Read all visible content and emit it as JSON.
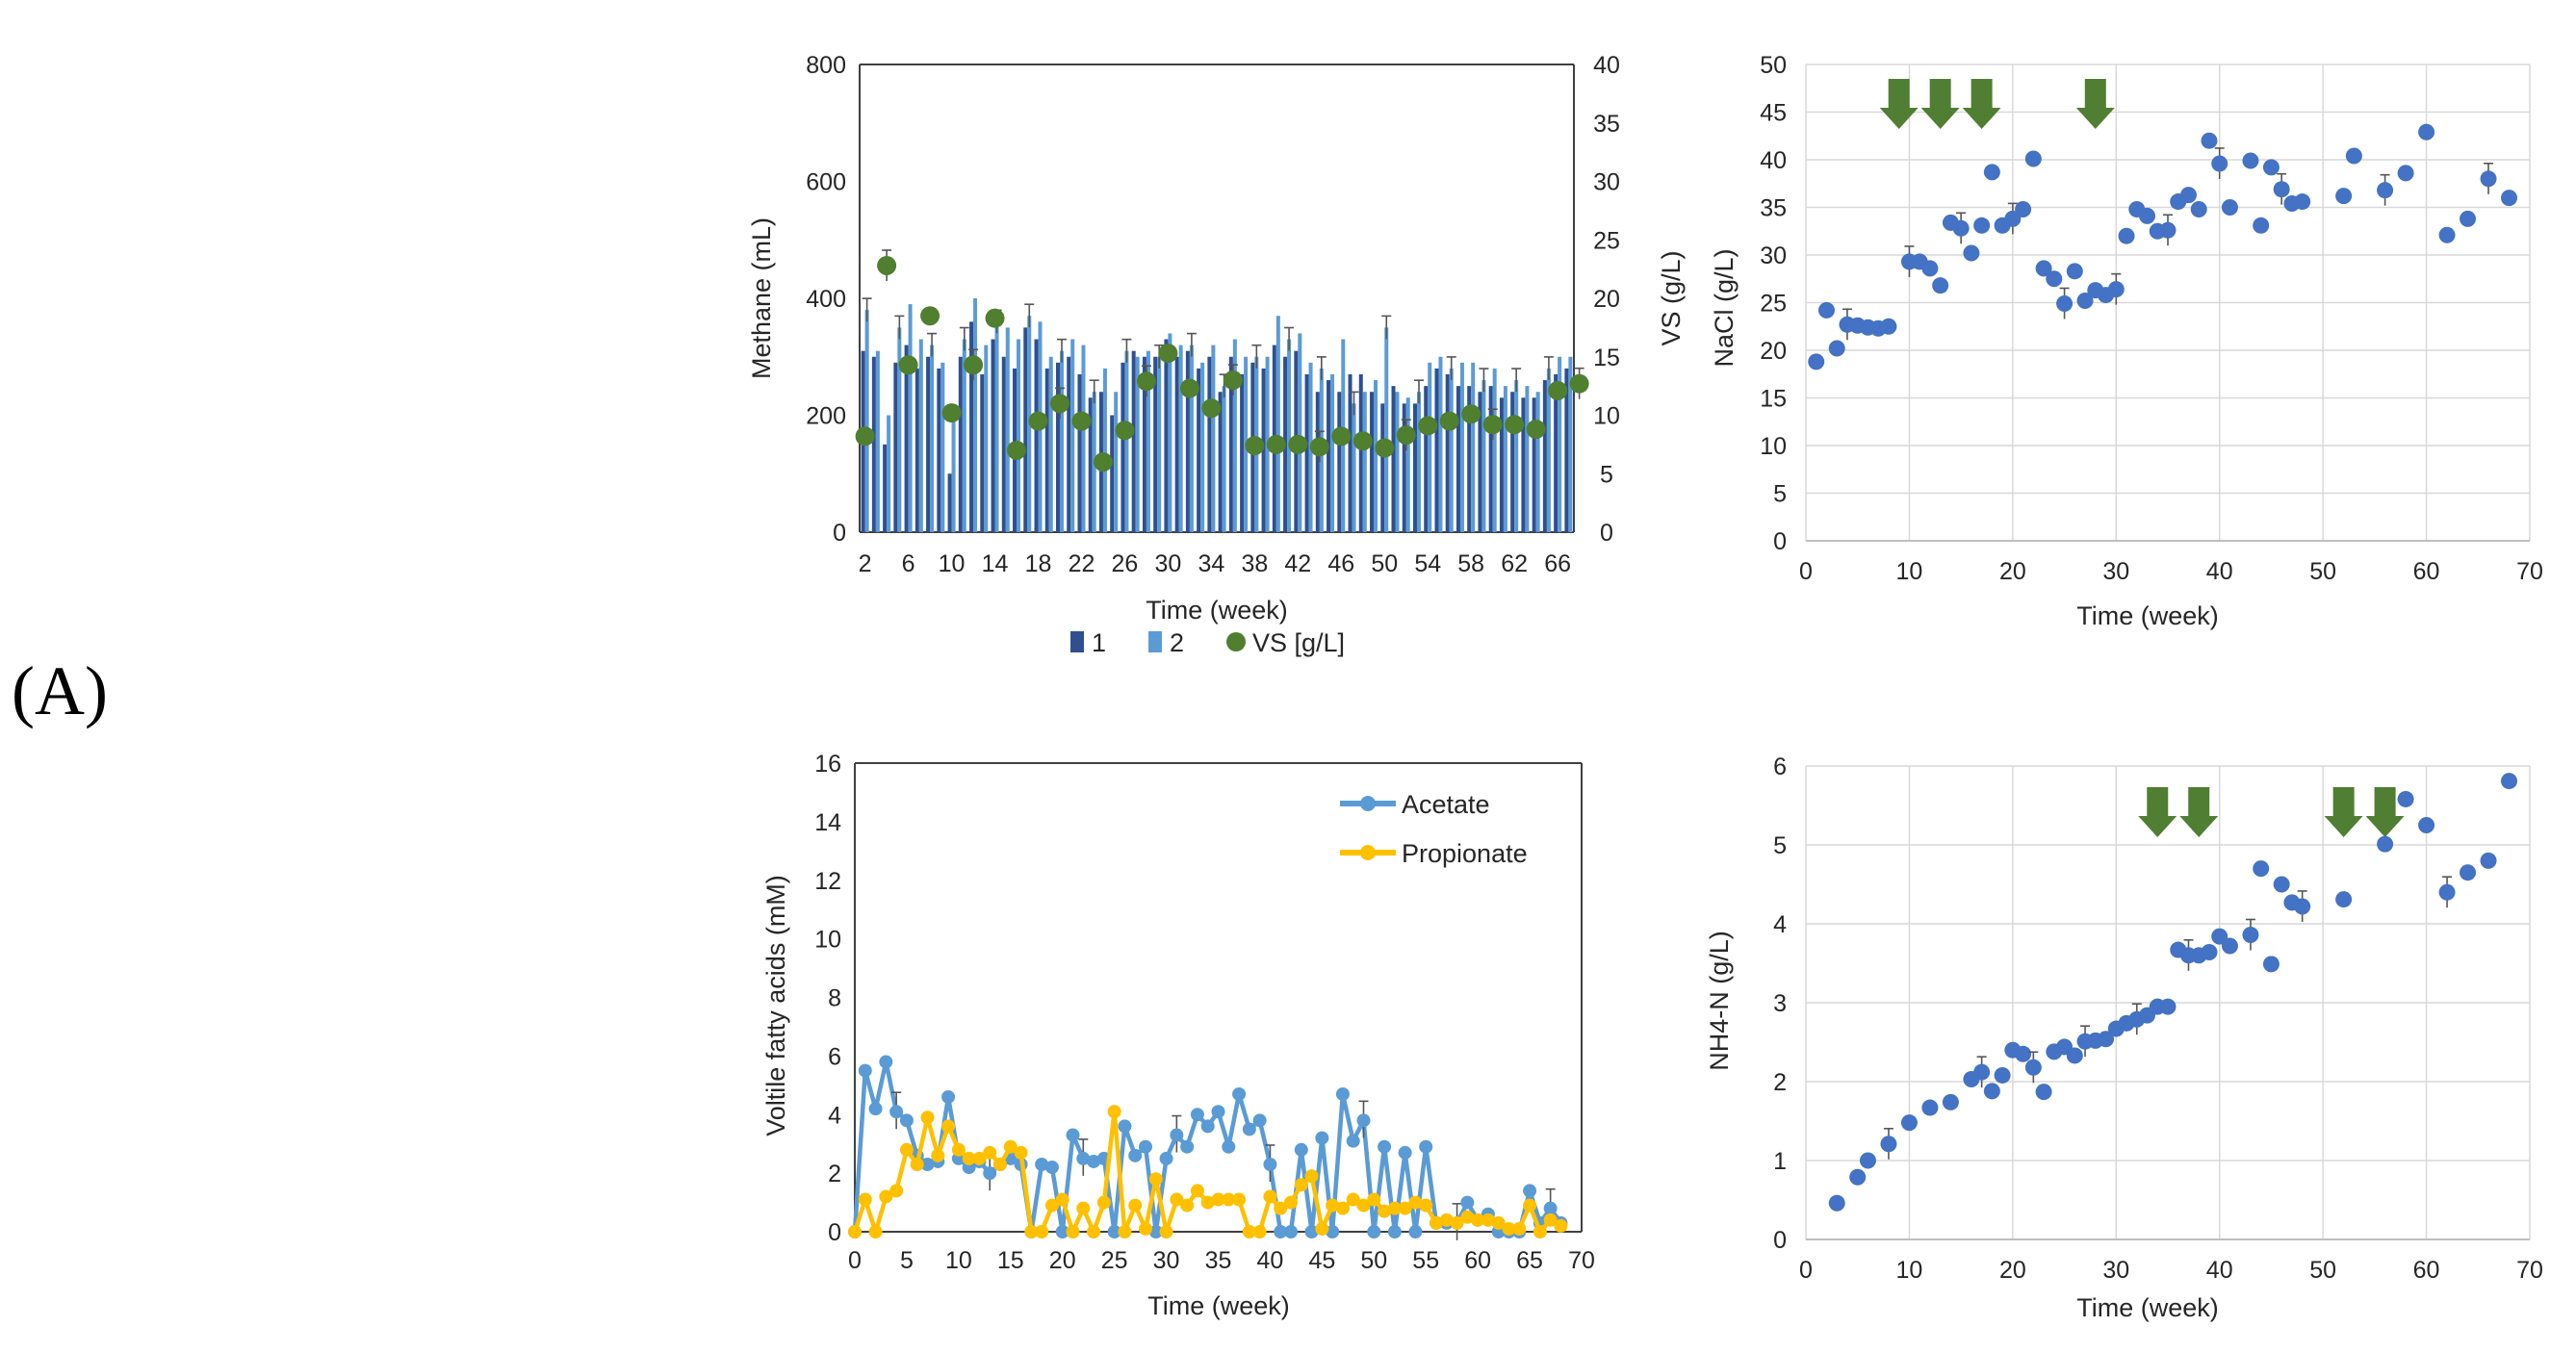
{
  "panel_label": "(A)",
  "colors": {
    "bar1": "#2f4f8f",
    "bar2": "#5b9bd5",
    "vs": "#4f7f2f",
    "nacl": "#4472c4",
    "acetate": "#5b9bd5",
    "propionate": "#ffc000",
    "arrow": "#507e32",
    "grid": "#d9d9d9",
    "axis": "#404040",
    "error": "#555555"
  },
  "chart_data": [
    {
      "type": "bar",
      "id": "methane",
      "xlabel": "Time (week)",
      "ylabel": "Methane (mL)",
      "y2label": "VS (g/L)",
      "ylim": [
        0,
        800
      ],
      "yticks": [
        0,
        200,
        400,
        600,
        800
      ],
      "y2lim": [
        0,
        40
      ],
      "y2ticks": [
        0,
        5,
        10,
        15,
        20,
        25,
        30,
        35,
        40
      ],
      "xtick_labels": [
        "2",
        "6",
        "10",
        "14",
        "18",
        "22",
        "26",
        "30",
        "34",
        "38",
        "42",
        "46",
        "50",
        "54",
        "58",
        "62",
        "66"
      ],
      "categories": [
        2,
        3,
        4,
        5,
        6,
        7,
        8,
        9,
        10,
        11,
        12,
        13,
        14,
        15,
        16,
        17,
        18,
        19,
        20,
        21,
        22,
        23,
        24,
        25,
        26,
        27,
        28,
        29,
        30,
        31,
        32,
        33,
        34,
        35,
        36,
        37,
        38,
        39,
        40,
        41,
        42,
        43,
        44,
        45,
        46,
        47,
        48,
        49,
        50,
        51,
        52,
        53,
        54,
        55,
        56,
        57,
        58,
        59,
        60,
        61,
        62,
        63,
        64,
        65,
        66,
        67
      ],
      "legend_position": "bottom",
      "legend": [
        "1",
        "2",
        "VS [g/L]"
      ],
      "series": [
        {
          "name": "1",
          "values": [
            310,
            300,
            150,
            290,
            320,
            280,
            300,
            280,
            100,
            300,
            360,
            270,
            330,
            300,
            280,
            350,
            330,
            280,
            290,
            300,
            270,
            230,
            240,
            200,
            290,
            310,
            300,
            300,
            330,
            300,
            310,
            280,
            300,
            240,
            300,
            270,
            290,
            280,
            320,
            300,
            310,
            270,
            240,
            260,
            240,
            270,
            270,
            240,
            220,
            250,
            220,
            220,
            250,
            280,
            270,
            250,
            250,
            240,
            250,
            230,
            240,
            230,
            230,
            260,
            270,
            280
          ]
        },
        {
          "name": "2",
          "values": [
            380,
            310,
            200,
            350,
            390,
            330,
            320,
            290,
            190,
            330,
            400,
            320,
            360,
            350,
            330,
            370,
            360,
            300,
            310,
            330,
            320,
            240,
            280,
            240,
            310,
            300,
            310,
            300,
            340,
            320,
            320,
            290,
            320,
            250,
            330,
            300,
            300,
            300,
            370,
            330,
            340,
            290,
            280,
            270,
            330,
            220,
            240,
            260,
            350,
            240,
            230,
            240,
            290,
            300,
            280,
            290,
            290,
            260,
            280,
            250,
            260,
            250,
            240,
            280,
            300,
            300
          ]
        },
        {
          "name": "VS [g/L]",
          "x": [
            2,
            4,
            6,
            8,
            10,
            12,
            14,
            16,
            18,
            20,
            22,
            24,
            26,
            28,
            30,
            32,
            34,
            36,
            38,
            40,
            42,
            44,
            46,
            48,
            50,
            52,
            54,
            56,
            58,
            60,
            62,
            64,
            66,
            68
          ],
          "values": [
            8.2,
            22.8,
            14.3,
            18.5,
            10.2,
            14.3,
            18.3,
            7,
            9.5,
            11,
            9.5,
            6,
            8.7,
            12.9,
            15.3,
            12.3,
            10.6,
            13,
            7.4,
            7.5,
            7.5,
            7.3,
            8.2,
            7.8,
            7.2,
            8.3,
            9.1,
            9.5,
            10.1,
            9.2,
            9.2,
            8.8,
            12.1,
            12.7
          ]
        }
      ]
    },
    {
      "type": "scatter",
      "id": "nacl",
      "xlabel": "Time (week)",
      "ylabel": "NaCl (g/L)",
      "xlim": [
        0,
        70
      ],
      "xticks": [
        0,
        10,
        20,
        30,
        40,
        50,
        60,
        70
      ],
      "ylim": [
        0,
        50
      ],
      "yticks": [
        0,
        5,
        10,
        15,
        20,
        25,
        30,
        35,
        40,
        45,
        50
      ],
      "grid": true,
      "arrows_at_week": [
        9,
        13,
        17,
        28
      ],
      "series": [
        {
          "name": "NaCl",
          "x": [
            1,
            2,
            3,
            4,
            5,
            6,
            7,
            8,
            10,
            11,
            12,
            13,
            14,
            15,
            16,
            17,
            18,
            19,
            20,
            21,
            22,
            23,
            24,
            25,
            26,
            27,
            28,
            29,
            30,
            31,
            32,
            33,
            34,
            35,
            36,
            37,
            38,
            39,
            40,
            41,
            43,
            44,
            45,
            46,
            47,
            48,
            52,
            53,
            56,
            58,
            60,
            62,
            64,
            66,
            68
          ],
          "y": [
            18.8,
            24.2,
            20.2,
            22.7,
            22.6,
            22.4,
            22.3,
            22.5,
            29.3,
            29.3,
            28.6,
            26.8,
            33.4,
            32.8,
            30.2,
            33.1,
            38.7,
            33.1,
            33.8,
            34.8,
            40.1,
            28.6,
            27.5,
            24.9,
            28.3,
            25.2,
            26.3,
            25.8,
            26.4,
            32.0,
            34.8,
            34.1,
            32.5,
            32.6,
            35.6,
            36.3,
            34.8,
            42.0,
            39.6,
            35.0,
            39.9,
            33.1,
            39.2,
            36.9,
            35.4,
            35.6,
            36.2,
            40.4,
            36.8,
            38.6,
            42.9,
            32.1,
            33.8,
            38.0,
            36.0
          ]
        }
      ]
    },
    {
      "type": "line",
      "id": "vfa",
      "xlabel": "Time (week)",
      "ylabel": "Voltile fatty acids (mM)",
      "xlim": [
        0,
        70
      ],
      "xticks": [
        0,
        5,
        10,
        15,
        20,
        25,
        30,
        35,
        40,
        45,
        50,
        55,
        60,
        65,
        70
      ],
      "ylim": [
        0,
        16
      ],
      "yticks": [
        0,
        2,
        4,
        6,
        8,
        10,
        12,
        14,
        16
      ],
      "legend_position": "top-right",
      "series": [
        {
          "name": "Acetate",
          "x": [
            0,
            1,
            2,
            3,
            4,
            5,
            6,
            7,
            8,
            9,
            10,
            11,
            12,
            13,
            14,
            15,
            16,
            17,
            18,
            19,
            20,
            21,
            22,
            23,
            24,
            25,
            26,
            27,
            28,
            29,
            30,
            31,
            32,
            33,
            34,
            35,
            36,
            37,
            38,
            39,
            40,
            41,
            42,
            43,
            44,
            45,
            46,
            47,
            48,
            49,
            50,
            51,
            52,
            53,
            54,
            55,
            56,
            57,
            58,
            59,
            60,
            61,
            62,
            63,
            64,
            65,
            66,
            67,
            68
          ],
          "y": [
            0,
            5.5,
            4.2,
            5.8,
            4.1,
            3.8,
            2.6,
            2.3,
            2.4,
            4.6,
            2.5,
            2.2,
            2.4,
            2.0,
            2.3,
            2.5,
            2.3,
            0,
            2.3,
            2.2,
            0,
            3.3,
            2.5,
            2.4,
            2.5,
            0,
            3.6,
            2.6,
            2.9,
            0,
            2.5,
            3.3,
            2.9,
            4.0,
            3.6,
            4.1,
            2.9,
            4.7,
            3.5,
            3.8,
            2.3,
            0,
            0,
            2.8,
            0,
            3.2,
            0,
            4.7,
            3.1,
            3.8,
            0,
            2.9,
            0,
            2.7,
            0,
            2.9,
            0.3,
            0.3,
            0.3,
            1.0,
            0.4,
            0.6,
            0,
            0,
            0,
            1.4,
            0.3,
            0.8,
            0.3
          ]
        },
        {
          "name": "Propionate",
          "x": [
            0,
            1,
            2,
            3,
            4,
            5,
            6,
            7,
            8,
            9,
            10,
            11,
            12,
            13,
            14,
            15,
            16,
            17,
            18,
            19,
            20,
            21,
            22,
            23,
            24,
            25,
            26,
            27,
            28,
            29,
            30,
            31,
            32,
            33,
            34,
            35,
            36,
            37,
            38,
            39,
            40,
            41,
            42,
            43,
            44,
            45,
            46,
            47,
            48,
            49,
            50,
            51,
            52,
            53,
            54,
            55,
            56,
            57,
            58,
            59,
            60,
            61,
            62,
            63,
            64,
            65,
            66,
            67,
            68
          ],
          "y": [
            0,
            1.1,
            0,
            1.2,
            1.4,
            2.8,
            2.3,
            3.9,
            2.6,
            3.6,
            2.8,
            2.5,
            2.5,
            2.7,
            2.3,
            2.9,
            2.7,
            0,
            0,
            0.9,
            1.1,
            0,
            0.8,
            0,
            1.0,
            4.1,
            0,
            0.9,
            0.1,
            1.8,
            0,
            1.1,
            0.9,
            1.4,
            1.0,
            1.1,
            1.1,
            1.1,
            0,
            0,
            1.2,
            0.8,
            1.0,
            1.6,
            1.9,
            0.1,
            0.9,
            0.8,
            1.1,
            0.9,
            1.1,
            0.7,
            0.8,
            0.8,
            1.0,
            0.9,
            0.3,
            0.4,
            0.3,
            0.5,
            0.4,
            0.4,
            0.3,
            0.1,
            0.1,
            0.9,
            0,
            0.4,
            0.2
          ]
        }
      ]
    },
    {
      "type": "scatter",
      "id": "nh4",
      "xlabel": "Time (week)",
      "ylabel": "NH4-N (g/L)",
      "xlim": [
        0,
        70
      ],
      "xticks": [
        0,
        10,
        20,
        30,
        40,
        50,
        60,
        70
      ],
      "ylim": [
        0,
        6
      ],
      "yticks": [
        0,
        1,
        2,
        3,
        4,
        5,
        6
      ],
      "grid": true,
      "arrows_at_week": [
        34,
        38,
        52,
        56
      ],
      "series": [
        {
          "name": "NH4-N",
          "x": [
            3,
            5,
            6,
            8,
            10,
            12,
            14,
            16,
            17,
            18,
            19,
            20,
            21,
            22,
            23,
            24,
            25,
            26,
            27,
            28,
            29,
            30,
            31,
            32,
            33,
            34,
            35,
            36,
            37,
            38,
            39,
            40,
            41,
            43,
            44,
            45,
            46,
            47,
            48,
            52,
            56,
            58,
            60,
            62,
            64,
            66,
            68
          ],
          "y": [
            0.46,
            0.79,
            1.0,
            1.21,
            1.48,
            1.67,
            1.74,
            2.03,
            2.12,
            1.88,
            2.08,
            2.4,
            2.35,
            2.18,
            1.87,
            2.38,
            2.44,
            2.33,
            2.51,
            2.52,
            2.54,
            2.67,
            2.74,
            2.79,
            2.84,
            2.95,
            2.95,
            3.67,
            3.6,
            3.6,
            3.64,
            3.84,
            3.72,
            3.86,
            4.7,
            3.49,
            4.5,
            4.27,
            4.22,
            4.31,
            5.01,
            5.58,
            5.25,
            4.4,
            4.65,
            4.8,
            5.81
          ]
        }
      ]
    }
  ]
}
